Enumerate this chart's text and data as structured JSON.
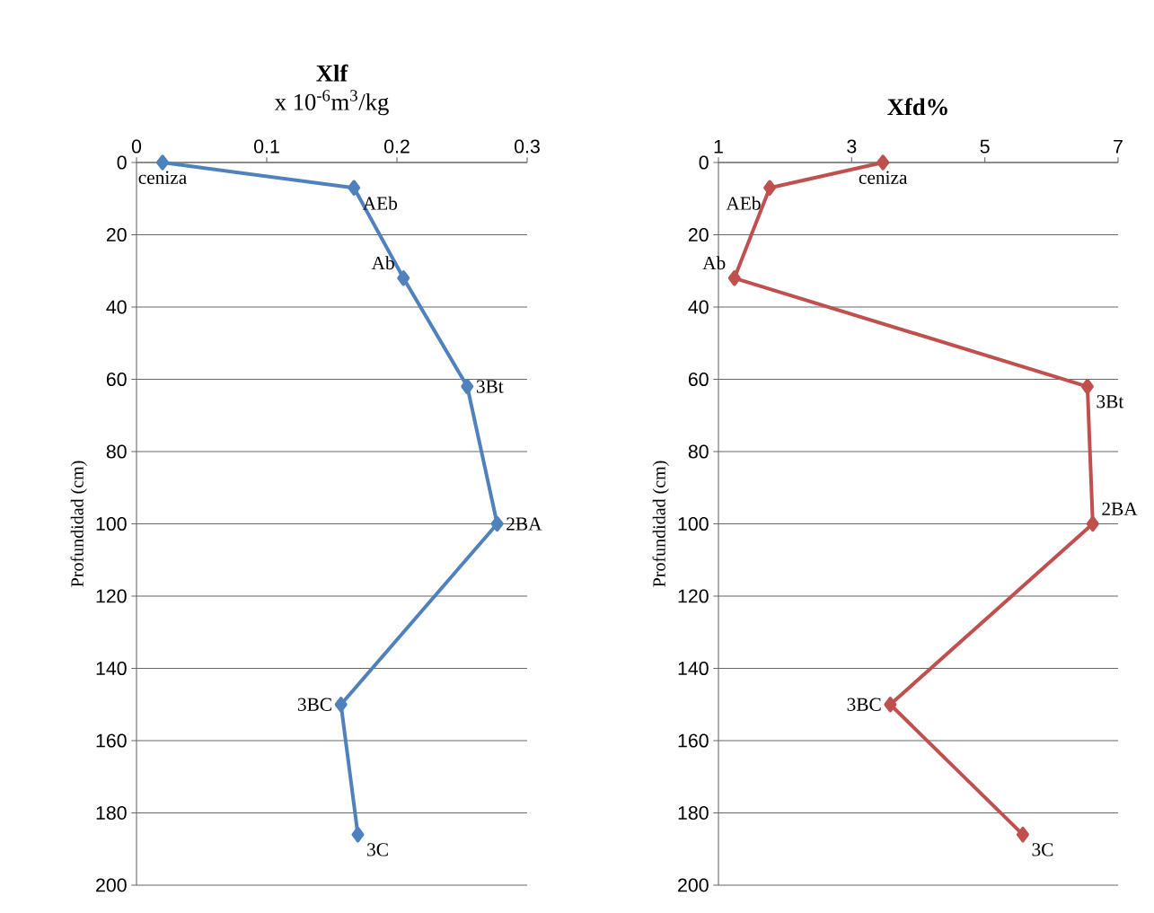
{
  "chart_data": [
    {
      "type": "line",
      "title": "Xlf",
      "subtitle": "x 10$^{-6}$m$^{3}$/kg",
      "ylabel": "Profundidad (cm)",
      "x": [
        0.02,
        0.167,
        0.205,
        0.254,
        0.277,
        0.157,
        0.17
      ],
      "values": [
        0,
        7,
        32,
        62,
        100,
        150,
        186
      ],
      "color": "#4f81bd",
      "marker": "diamond",
      "grid": "y",
      "xlim": [
        0,
        0.3
      ],
      "xticks": [
        0,
        0.1,
        0.2,
        0.3
      ],
      "ylim": [
        200,
        0
      ],
      "yticks": [
        0,
        20,
        40,
        60,
        80,
        100,
        120,
        140,
        160,
        180,
        200
      ],
      "annotations": [
        {
          "text": "ceniza",
          "x": 0.02,
          "y": 0
        },
        {
          "text": "AEb",
          "x": 0.167,
          "y": 7
        },
        {
          "text": "Ab",
          "x": 0.205,
          "y": 32
        },
        {
          "text": "3Bt",
          "x": 0.254,
          "y": 62
        },
        {
          "text": "2BA",
          "x": 0.277,
          "y": 100
        },
        {
          "text": "3BC",
          "x": 0.157,
          "y": 150
        },
        {
          "text": "3C",
          "x": 0.17,
          "y": 186
        }
      ]
    },
    {
      "type": "line",
      "title": "Xfd%",
      "ylabel": "Profundidad (cm)",
      "x": [
        3.47,
        1.77,
        1.24,
        6.54,
        6.62,
        3.58,
        5.57
      ],
      "values": [
        0,
        7,
        32,
        62,
        100,
        150,
        186
      ],
      "color": "#c0504d",
      "marker": "diamond",
      "grid": "y",
      "xlim": [
        1,
        7
      ],
      "xticks": [
        1,
        3,
        5,
        7
      ],
      "ylim": [
        200,
        0
      ],
      "yticks": [
        0,
        20,
        40,
        60,
        80,
        100,
        120,
        140,
        160,
        180,
        200
      ],
      "annotations": [
        {
          "text": "ceniza",
          "x": 3.47,
          "y": 0
        },
        {
          "text": "AEb",
          "x": 1.77,
          "y": 7
        },
        {
          "text": "Ab",
          "x": 1.24,
          "y": 32
        },
        {
          "text": "3Bt",
          "x": 6.54,
          "y": 62
        },
        {
          "text": "2BA",
          "x": 6.62,
          "y": 100
        },
        {
          "text": "3BC",
          "x": 3.58,
          "y": 150
        },
        {
          "text": "3C",
          "x": 5.57,
          "y": 186
        }
      ]
    }
  ]
}
